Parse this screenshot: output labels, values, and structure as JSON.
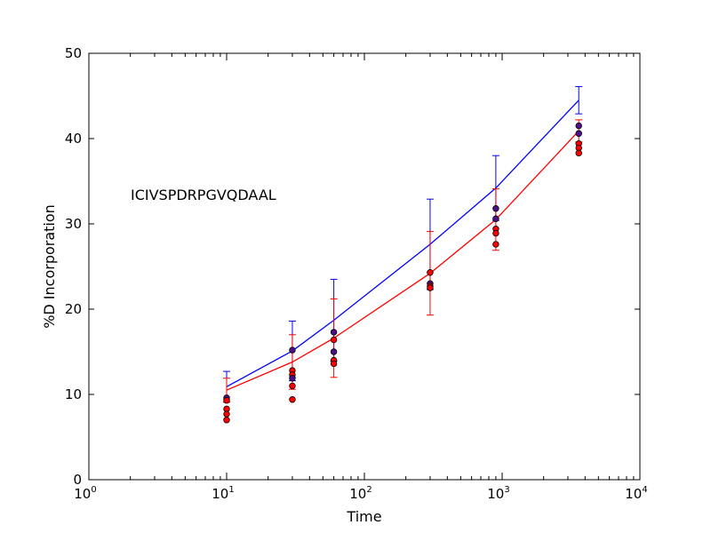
{
  "chart_data": {
    "type": "line",
    "title": "",
    "annotation": "ICIVSPDRPGVQDAAL",
    "xlabel": "Time",
    "ylabel": "%D Incorporation",
    "xscale": "log",
    "xlim": [
      1,
      10000
    ],
    "ylim": [
      0,
      50
    ],
    "x_ticks": [
      {
        "base": "10",
        "exp": "0"
      },
      {
        "base": "10",
        "exp": "1"
      },
      {
        "base": "10",
        "exp": "2"
      },
      {
        "base": "10",
        "exp": "3"
      },
      {
        "base": "10",
        "exp": "4"
      }
    ],
    "y_ticks": [
      "0",
      "10",
      "20",
      "30",
      "40",
      "50"
    ],
    "grid": false,
    "series": [
      {
        "color": "#0000ff",
        "x": [
          10,
          30,
          60,
          300,
          900,
          3600
        ],
        "y": [
          10.9,
          15.1,
          18.7,
          27.6,
          34.2,
          44.5
        ],
        "err": [
          1.8,
          3.5,
          4.8,
          5.3,
          3.8,
          1.6
        ]
      },
      {
        "color": "#ff0000",
        "x": [
          10,
          30,
          60,
          300,
          900,
          3600
        ],
        "y": [
          10.5,
          13.8,
          16.6,
          24.2,
          30.5,
          40.9
        ],
        "err": [
          1.4,
          3.2,
          4.6,
          4.9,
          3.6,
          1.3
        ]
      }
    ],
    "points": [
      {
        "x": 10,
        "y": 9.6,
        "fill": "#4b0f8c"
      },
      {
        "x": 10,
        "y": 9.3,
        "fill": "#ff0000"
      },
      {
        "x": 10,
        "y": 8.3,
        "fill": "#ff0000"
      },
      {
        "x": 10,
        "y": 7.7,
        "fill": "#ff0000"
      },
      {
        "x": 10,
        "y": 7.0,
        "fill": "#ff0000"
      },
      {
        "x": 30,
        "y": 15.2,
        "fill": "#4b0f8c"
      },
      {
        "x": 30,
        "y": 12.8,
        "fill": "#ff0000"
      },
      {
        "x": 30,
        "y": 12.3,
        "fill": "#ff0000"
      },
      {
        "x": 30,
        "y": 11.9,
        "fill": "#4b0f8c"
      },
      {
        "x": 30,
        "y": 11.0,
        "fill": "#ff0000"
      },
      {
        "x": 30,
        "y": 9.4,
        "fill": "#ff0000"
      },
      {
        "x": 60,
        "y": 17.3,
        "fill": "#4b0f8c"
      },
      {
        "x": 60,
        "y": 16.4,
        "fill": "#ff0000"
      },
      {
        "x": 60,
        "y": 15.0,
        "fill": "#4b0f8c"
      },
      {
        "x": 60,
        "y": 14.0,
        "fill": "#ff0000"
      },
      {
        "x": 60,
        "y": 13.6,
        "fill": "#ff0000"
      },
      {
        "x": 300,
        "y": 24.3,
        "fill": "#ff0000"
      },
      {
        "x": 300,
        "y": 23.0,
        "fill": "#4b0f8c"
      },
      {
        "x": 300,
        "y": 22.7,
        "fill": "#ff0000"
      },
      {
        "x": 300,
        "y": 22.5,
        "fill": "#ff0000"
      },
      {
        "x": 900,
        "y": 31.8,
        "fill": "#4b0f8c"
      },
      {
        "x": 900,
        "y": 30.6,
        "fill": "#4b0f8c"
      },
      {
        "x": 900,
        "y": 29.4,
        "fill": "#ff0000"
      },
      {
        "x": 900,
        "y": 28.9,
        "fill": "#ff0000"
      },
      {
        "x": 900,
        "y": 27.6,
        "fill": "#ff0000"
      },
      {
        "x": 3600,
        "y": 41.5,
        "fill": "#4b0f8c"
      },
      {
        "x": 3600,
        "y": 40.6,
        "fill": "#4b0f8c"
      },
      {
        "x": 3600,
        "y": 39.4,
        "fill": "#ff0000"
      },
      {
        "x": 3600,
        "y": 38.9,
        "fill": "#ff0000"
      },
      {
        "x": 3600,
        "y": 38.3,
        "fill": "#ff0000"
      }
    ]
  }
}
